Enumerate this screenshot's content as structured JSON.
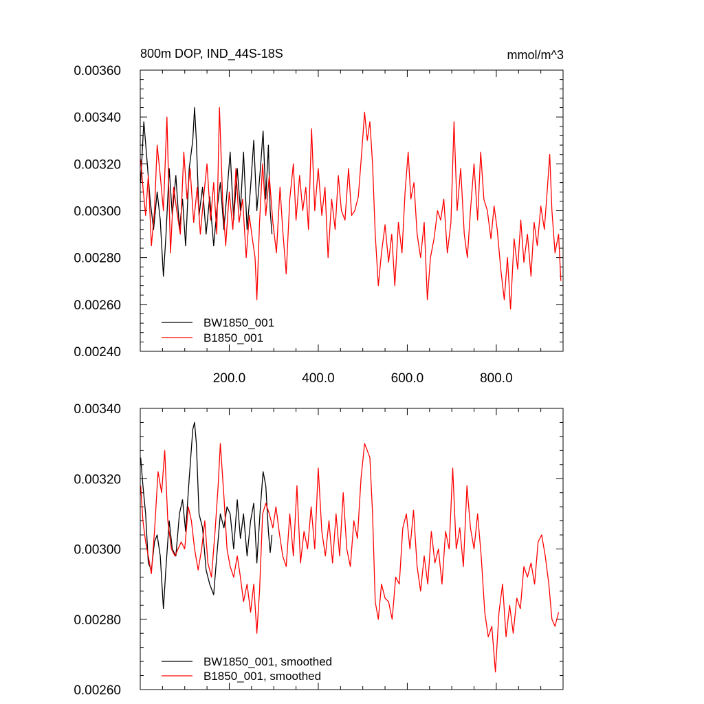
{
  "chart_data": [
    {
      "type": "line",
      "title": "800m DOP, IND_44S-18S",
      "units": "mmol/m^3",
      "xlim": [
        0,
        950
      ],
      "ylim": [
        0.0024,
        0.0036
      ],
      "yticks": [
        0.0024,
        0.0026,
        0.0028,
        0.003,
        0.0032,
        0.0034,
        0.0036
      ],
      "ytick_labels": [
        "0.00240",
        "0.00260",
        "0.00280",
        "0.00300",
        "0.00320",
        "0.00340",
        "0.00360"
      ],
      "xticks": [
        200,
        400,
        600,
        800
      ],
      "xtick_labels": [
        "200.0",
        "400.0",
        "600.0",
        "800.0"
      ],
      "grid": false,
      "legend_position": "bottom-left",
      "series": [
        {
          "name": "BW1850_001",
          "color": "#000000",
          "x": [
            1,
            8,
            15,
            22,
            30,
            38,
            45,
            52,
            58,
            65,
            72,
            80,
            88,
            95,
            102,
            110,
            118,
            122,
            126,
            132,
            140,
            148,
            156,
            165,
            172,
            180,
            188,
            195,
            202,
            210,
            218,
            225,
            232,
            240,
            248,
            255,
            262,
            270,
            276,
            282,
            288,
            292,
            296
          ],
          "y": [
            0.00312,
            0.00338,
            0.00322,
            0.00305,
            0.00292,
            0.00308,
            0.00296,
            0.00272,
            0.0029,
            0.00318,
            0.00298,
            0.00315,
            0.00292,
            0.00305,
            0.00285,
            0.00318,
            0.0033,
            0.00344,
            0.0033,
            0.00298,
            0.0031,
            0.0029,
            0.00306,
            0.00285,
            0.003,
            0.00312,
            0.00292,
            0.00308,
            0.00325,
            0.00296,
            0.00318,
            0.003,
            0.00325,
            0.00292,
            0.0031,
            0.0033,
            0.003,
            0.00318,
            0.00334,
            0.00305,
            0.00328,
            0.003,
            0.0029
          ]
        },
        {
          "name": "B1850_001",
          "color": "#ff0000",
          "x": [
            1,
            6,
            12,
            18,
            25,
            32,
            38,
            45,
            52,
            60,
            68,
            75,
            82,
            90,
            98,
            105,
            112,
            120,
            128,
            135,
            142,
            150,
            158,
            165,
            172,
            178,
            185,
            192,
            200,
            208,
            215,
            222,
            230,
            238,
            245,
            252,
            258,
            262,
            268,
            275,
            282,
            290,
            298,
            306,
            314,
            320,
            328,
            336,
            344,
            350,
            358,
            365,
            372,
            378,
            385,
            392,
            400,
            408,
            415,
            422,
            430,
            438,
            445,
            452,
            460,
            468,
            475,
            482,
            490,
            498,
            504,
            510,
            516,
            522,
            528,
            535,
            542,
            550,
            558,
            565,
            572,
            580,
            588,
            595,
            602,
            608,
            615,
            622,
            630,
            638,
            645,
            652,
            660,
            668,
            675,
            682,
            690,
            698,
            705,
            712,
            720,
            728,
            735,
            742,
            750,
            758,
            765,
            772,
            780,
            788,
            795,
            802,
            810,
            818,
            825,
            832,
            840,
            848,
            855,
            862,
            870,
            878,
            885,
            892,
            900,
            908,
            915,
            920,
            925,
            932,
            940,
            945
          ],
          "y": [
            0.00322,
            0.0031,
            0.00298,
            0.00315,
            0.00285,
            0.003,
            0.00328,
            0.00315,
            0.003,
            0.0034,
            0.00282,
            0.0031,
            0.003,
            0.0029,
            0.00325,
            0.00305,
            0.00318,
            0.00295,
            0.0031,
            0.0029,
            0.00305,
            0.0032,
            0.00296,
            0.00312,
            0.0029,
            0.00344,
            0.00305,
            0.00285,
            0.00308,
            0.00292,
            0.00318,
            0.00295,
            0.00305,
            0.0028,
            0.00298,
            0.00288,
            0.0028,
            0.00262,
            0.00295,
            0.0032,
            0.00298,
            0.00315,
            0.00295,
            0.00282,
            0.0031,
            0.00292,
            0.00273,
            0.00305,
            0.0032,
            0.00296,
            0.00315,
            0.003,
            0.0031,
            0.00292,
            0.00335,
            0.003,
            0.00318,
            0.00298,
            0.0031,
            0.0028,
            0.00305,
            0.00292,
            0.00315,
            0.003,
            0.00296,
            0.00318,
            0.00298,
            0.003,
            0.00306,
            0.00326,
            0.00342,
            0.0033,
            0.00338,
            0.0032,
            0.0029,
            0.00268,
            0.00282,
            0.00294,
            0.00278,
            0.0029,
            0.00268,
            0.00295,
            0.00282,
            0.00308,
            0.00325,
            0.00305,
            0.00312,
            0.0029,
            0.0028,
            0.00295,
            0.00262,
            0.0028,
            0.00288,
            0.003,
            0.00296,
            0.00305,
            0.00282,
            0.00295,
            0.00338,
            0.003,
            0.00318,
            0.0029,
            0.0028,
            0.003,
            0.0032,
            0.00296,
            0.00325,
            0.00305,
            0.003,
            0.00288,
            0.00302,
            0.00292,
            0.00275,
            0.00262,
            0.0028,
            0.00258,
            0.00288,
            0.00275,
            0.00296,
            0.00278,
            0.0029,
            0.00272,
            0.00295,
            0.00285,
            0.00302,
            0.00292,
            0.0031,
            0.00324,
            0.003,
            0.00282,
            0.0029,
            0.0027
          ]
        }
      ]
    },
    {
      "type": "line",
      "xlim": [
        0,
        950
      ],
      "ylim": [
        0.0026,
        0.0034
      ],
      "yticks": [
        0.0026,
        0.0028,
        0.003,
        0.0032,
        0.0034
      ],
      "ytick_labels": [
        "0.00260",
        "0.00280",
        "0.00300",
        "0.00320",
        "0.00340"
      ],
      "grid": false,
      "legend_position": "bottom-left",
      "series": [
        {
          "name": "BW1850_001, smoothed",
          "color": "#000000",
          "x": [
            1,
            6,
            12,
            18,
            25,
            32,
            38,
            45,
            52,
            58,
            65,
            72,
            80,
            88,
            95,
            102,
            110,
            118,
            122,
            126,
            132,
            140,
            148,
            156,
            165,
            172,
            180,
            188,
            195,
            202,
            210,
            218,
            225,
            232,
            240,
            248,
            255,
            262,
            270,
            276,
            282,
            288,
            292,
            296
          ],
          "y": [
            0.00326,
            0.00318,
            0.0031,
            0.00296,
            0.00294,
            0.00302,
            0.00304,
            0.00298,
            0.00283,
            0.00295,
            0.00308,
            0.003,
            0.00298,
            0.0031,
            0.00314,
            0.00305,
            0.0032,
            0.00334,
            0.00336,
            0.0033,
            0.0031,
            0.00306,
            0.00294,
            0.0029,
            0.00287,
            0.00298,
            0.0031,
            0.00306,
            0.00312,
            0.0031,
            0.003,
            0.00314,
            0.00303,
            0.0031,
            0.00298,
            0.00308,
            0.00313,
            0.00296,
            0.00312,
            0.00322,
            0.00318,
            0.00305,
            0.00299,
            0.00304
          ]
        },
        {
          "name": "B1850_001, smoothed",
          "color": "#ff0000",
          "x": [
            1,
            6,
            12,
            18,
            25,
            32,
            40,
            48,
            55,
            62,
            70,
            78,
            85,
            92,
            100,
            108,
            115,
            122,
            130,
            138,
            145,
            152,
            160,
            168,
            175,
            180,
            188,
            195,
            202,
            210,
            218,
            225,
            232,
            240,
            248,
            255,
            262,
            268,
            275,
            282,
            290,
            298,
            305,
            312,
            320,
            328,
            336,
            344,
            352,
            360,
            368,
            376,
            384,
            392,
            400,
            408,
            416,
            424,
            432,
            440,
            448,
            456,
            464,
            472,
            480,
            488,
            496,
            504,
            510,
            516,
            522,
            528,
            535,
            542,
            550,
            558,
            566,
            574,
            582,
            590,
            598,
            606,
            614,
            622,
            630,
            638,
            646,
            654,
            662,
            670,
            678,
            686,
            694,
            702,
            710,
            718,
            726,
            734,
            742,
            750,
            758,
            766,
            774,
            782,
            790,
            798,
            806,
            814,
            822,
            830,
            838,
            846,
            854,
            862,
            870,
            878,
            886,
            894,
            902,
            910,
            918,
            925,
            932,
            940
          ],
          "y": [
            0.00318,
            0.00308,
            0.00302,
            0.00298,
            0.00293,
            0.00305,
            0.00322,
            0.00316,
            0.00328,
            0.00308,
            0.003,
            0.00298,
            0.003,
            0.00302,
            0.003,
            0.00312,
            0.00308,
            0.003,
            0.00294,
            0.003,
            0.00308,
            0.00296,
            0.00292,
            0.00305,
            0.00318,
            0.0033,
            0.00315,
            0.003,
            0.00295,
            0.00292,
            0.00298,
            0.00292,
            0.00285,
            0.0029,
            0.00282,
            0.0029,
            0.00276,
            0.00288,
            0.0031,
            0.00313,
            0.0031,
            0.00306,
            0.00312,
            0.00305,
            0.00298,
            0.00295,
            0.0031,
            0.00298,
            0.00318,
            0.00296,
            0.00305,
            0.003,
            0.00312,
            0.003,
            0.00323,
            0.00305,
            0.00298,
            0.00308,
            0.00296,
            0.0031,
            0.00298,
            0.00316,
            0.003,
            0.00295,
            0.00308,
            0.00303,
            0.0032,
            0.0033,
            0.00328,
            0.00326,
            0.0031,
            0.00285,
            0.0028,
            0.0029,
            0.00286,
            0.00285,
            0.0028,
            0.00292,
            0.0029,
            0.00306,
            0.0031,
            0.003,
            0.00311,
            0.00295,
            0.00288,
            0.00298,
            0.0029,
            0.00305,
            0.00296,
            0.003,
            0.0029,
            0.00305,
            0.003,
            0.00323,
            0.003,
            0.00306,
            0.00295,
            0.00318,
            0.00306,
            0.003,
            0.0031,
            0.00298,
            0.00282,
            0.00275,
            0.00278,
            0.00265,
            0.00282,
            0.0029,
            0.00275,
            0.00284,
            0.00276,
            0.00286,
            0.00283,
            0.00295,
            0.00292,
            0.00296,
            0.0029,
            0.00302,
            0.00304,
            0.00298,
            0.0029,
            0.0028,
            0.00278,
            0.00282
          ]
        }
      ]
    }
  ]
}
